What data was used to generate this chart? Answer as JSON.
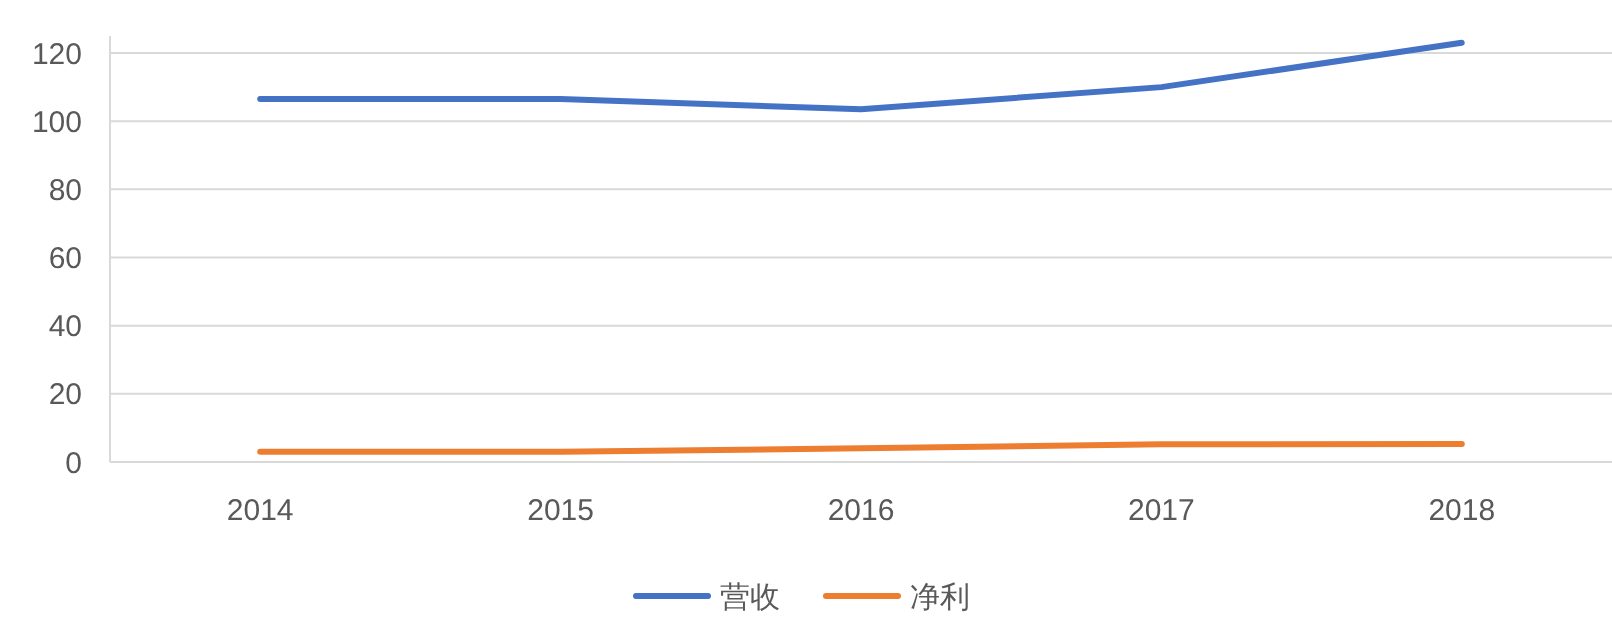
{
  "chart_data": {
    "type": "line",
    "categories": [
      "2014",
      "2015",
      "2016",
      "2017",
      "2018"
    ],
    "series": [
      {
        "name": "营收",
        "color": "#4472c4",
        "values": [
          106.5,
          106.5,
          103.5,
          110,
          123
        ]
      },
      {
        "name": "净利",
        "color": "#ed7d31",
        "values": [
          3,
          3,
          4,
          5.2,
          5.3
        ]
      }
    ],
    "ylim": [
      0,
      125
    ],
    "yticks": [
      0,
      20,
      40,
      60,
      80,
      100,
      120
    ],
    "grid": "y",
    "legend": "bottom",
    "marker": "none",
    "line_style": "solid"
  }
}
